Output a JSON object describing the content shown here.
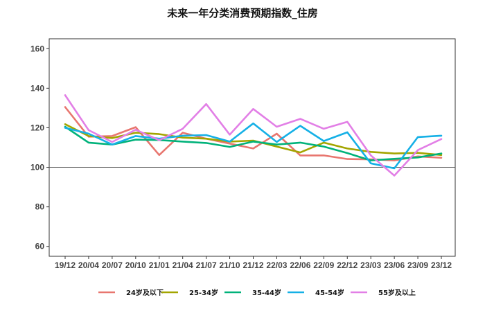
{
  "title": "未来一年分类消费预期指数_住房",
  "chart_data": {
    "type": "line",
    "title": "未来一年分类消费预期指数_住房",
    "xlabel": "",
    "ylabel": "",
    "ylim": [
      55,
      165
    ],
    "yticks": [
      60,
      80,
      100,
      120,
      140,
      160
    ],
    "reference_line": 100,
    "grid": false,
    "legend_position": "bottom",
    "x": [
      "19/12",
      "20/04",
      "20/07",
      "20/10",
      "21/01",
      "21/04",
      "21/07",
      "21/10",
      "21/12",
      "22/03",
      "22/06",
      "22/09",
      "22/12",
      "23/03",
      "23/06",
      "23/09",
      "23/12"
    ],
    "series": [
      {
        "name": "24岁及以下",
        "color": "#e8766f",
        "values": [
          130.5,
          115.5,
          115.8,
          120.3,
          106.2,
          117.5,
          114.5,
          112.0,
          109.5,
          117.0,
          106.0,
          106.0,
          104.2,
          104.0,
          103.5,
          105.5,
          104.8
        ]
      },
      {
        "name": "25-34岁",
        "color": "#a3a500",
        "values": [
          121.8,
          115.8,
          114.8,
          117.5,
          116.8,
          115.0,
          114.5,
          113.0,
          113.5,
          110.5,
          107.5,
          112.5,
          109.5,
          107.8,
          107.0,
          107.3,
          106.2
        ]
      },
      {
        "name": "35-44岁",
        "color": "#00b27a",
        "values": [
          120.5,
          112.5,
          111.5,
          114.0,
          113.8,
          113.0,
          112.3,
          110.3,
          113.0,
          111.5,
          112.5,
          110.5,
          107.2,
          103.5,
          104.3,
          105.0,
          107.0
        ]
      },
      {
        "name": "45-54岁",
        "color": "#15b0e6",
        "values": [
          120.0,
          117.0,
          111.5,
          115.8,
          114.5,
          116.0,
          116.3,
          113.0,
          122.2,
          112.8,
          121.0,
          113.3,
          117.7,
          102.0,
          99.5,
          115.3,
          116.0
        ]
      },
      {
        "name": "55岁及以上",
        "color": "#e27fe6",
        "values": [
          136.5,
          118.8,
          112.8,
          119.0,
          113.7,
          119.5,
          132.0,
          116.5,
          129.5,
          120.5,
          124.5,
          119.5,
          123.0,
          106.0,
          95.8,
          108.7,
          114.3
        ]
      }
    ]
  }
}
